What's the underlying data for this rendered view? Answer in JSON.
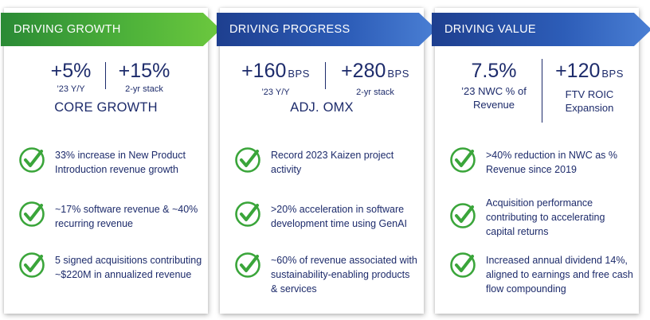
{
  "panels": [
    {
      "title": "DRIVING GROWTH",
      "stats": [
        {
          "value": "+5%",
          "unit": "",
          "label": "’23 Y/Y"
        },
        {
          "value": "+15%",
          "unit": "",
          "label": "2-yr stack"
        }
      ],
      "metric": "CORE GROWTH",
      "items": [
        "33% increase in New Product Introduction revenue growth",
        "~17% software revenue & ~40% recurring revenue",
        "5 signed acquisitions contributing ~$220M in annualized revenue"
      ]
    },
    {
      "title": "DRIVING PROGRESS",
      "stats": [
        {
          "value": "+160",
          "unit": "BPS",
          "label": "’23 Y/Y"
        },
        {
          "value": "+280",
          "unit": "BPS",
          "label": "2-yr stack"
        }
      ],
      "metric": "ADJ. OMX",
      "items": [
        "Record 2023 Kaizen project activity",
        ">20% acceleration in software development time using GenAI",
        "~60% of revenue associated with sustainability-enabling products & services"
      ]
    },
    {
      "title": "DRIVING VALUE",
      "stats": [
        {
          "value": "7.5%",
          "unit": "",
          "label": "’23 NWC % of Revenue"
        },
        {
          "value": "+120",
          "unit": "BPS",
          "label": "FTV ROIC Expansion"
        }
      ],
      "metric": "",
      "items": [
        ">40% reduction in NWC as % Revenue since 2019",
        "Acquisition performance contributing to accelerating capital returns",
        "Increased annual dividend 14%, aligned to earnings and free cash flow compounding"
      ]
    }
  ],
  "colors": {
    "navy": "#1d2b6b",
    "green": "#4fb33a",
    "blue": "#2d5db8",
    "check_green": "#3aa53a"
  },
  "icons": {
    "item_icon": "check-circle-icon"
  }
}
